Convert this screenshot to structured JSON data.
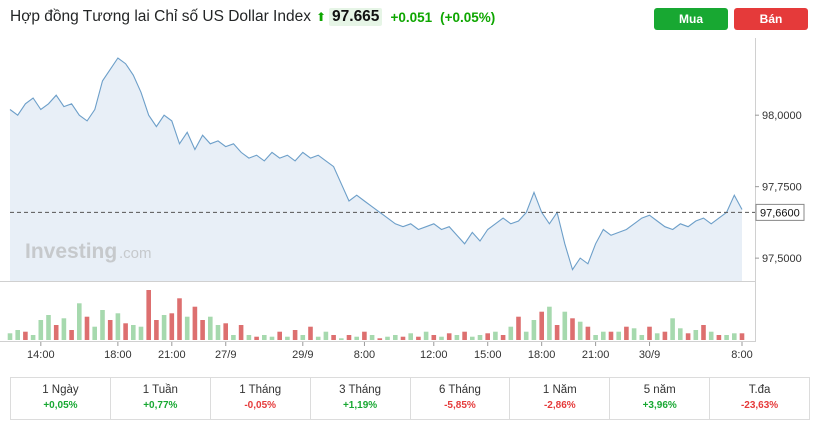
{
  "header": {
    "title": "Hợp đồng Tương lai Chỉ số US Dollar Index",
    "arrow": "⬆",
    "price": "97.665",
    "change": "+0.051",
    "change_pct": "(+0.05%)"
  },
  "buttons": {
    "buy": "Mua",
    "sell": "Bán"
  },
  "watermark": {
    "brand": "Investing",
    "suffix": ".com"
  },
  "periods": [
    {
      "label": "1 Ngày",
      "value": "+0,05%",
      "dir": "pos"
    },
    {
      "label": "1 Tuần",
      "value": "+0,77%",
      "dir": "pos"
    },
    {
      "label": "1 Tháng",
      "value": "-0,05%",
      "dir": "neg"
    },
    {
      "label": "3 Tháng",
      "value": "+1,19%",
      "dir": "pos"
    },
    {
      "label": "6 Tháng",
      "value": "-5,85%",
      "dir": "neg"
    },
    {
      "label": "1 Năm",
      "value": "-2,86%",
      "dir": "neg"
    },
    {
      "label": "5 năm",
      "value": "+3,96%",
      "dir": "pos"
    },
    {
      "label": "T.đa",
      "value": "-23,63%",
      "dir": "neg"
    }
  ],
  "colors": {
    "line": "#6d9fc9",
    "area": "#e8eff7",
    "up": "#a6d9ae",
    "down": "#dd6f6f",
    "dash": "#555555",
    "grid": "#d0d0d0"
  },
  "chart_data": {
    "type": "area",
    "ylim": [
      97.42,
      98.27
    ],
    "yticks": [
      "98,0000",
      "97,7500",
      "97,5000"
    ],
    "ytick_values": [
      98.0,
      97.75,
      97.5
    ],
    "current_label": "97,6600",
    "current_value": 97.66,
    "xticks": [
      "14:00",
      "18:00",
      "21:00",
      "27/9",
      "29/9",
      "8:00",
      "12:00",
      "15:00",
      "18:00",
      "21:00",
      "30/9",
      "8:00"
    ],
    "xtick_index": [
      4,
      14,
      21,
      28,
      38,
      46,
      55,
      62,
      69,
      76,
      83,
      95
    ],
    "n": 96,
    "values": [
      98.02,
      98.0,
      98.04,
      98.06,
      98.02,
      98.04,
      98.07,
      98.03,
      98.04,
      98.0,
      97.98,
      98.02,
      98.12,
      98.16,
      98.2,
      98.18,
      98.14,
      98.08,
      98.0,
      97.96,
      98.0,
      97.98,
      97.9,
      97.94,
      97.88,
      97.93,
      97.9,
      97.91,
      97.89,
      97.9,
      97.87,
      97.85,
      97.86,
      97.84,
      97.87,
      97.85,
      97.86,
      97.84,
      97.87,
      97.85,
      97.86,
      97.84,
      97.82,
      97.76,
      97.7,
      97.72,
      97.7,
      97.68,
      97.66,
      97.64,
      97.62,
      97.61,
      97.62,
      97.6,
      97.61,
      97.62,
      97.6,
      97.61,
      97.58,
      97.55,
      97.59,
      97.56,
      97.6,
      97.62,
      97.64,
      97.62,
      97.63,
      97.66,
      97.73,
      97.66,
      97.62,
      97.66,
      97.55,
      97.46,
      97.5,
      97.48,
      97.55,
      97.6,
      97.58,
      97.59,
      97.6,
      97.62,
      97.64,
      97.65,
      97.63,
      97.61,
      97.6,
      97.62,
      97.61,
      97.63,
      97.64,
      97.62,
      97.64,
      97.66,
      97.72,
      97.67
    ],
    "volume": [
      4,
      6,
      5,
      3,
      12,
      15,
      9,
      13,
      6,
      22,
      14,
      8,
      18,
      12,
      16,
      10,
      9,
      8,
      30,
      12,
      15,
      16,
      25,
      14,
      20,
      12,
      14,
      9,
      10,
      3,
      9,
      3,
      2,
      3,
      2,
      5,
      2,
      6,
      3,
      8,
      2,
      5,
      3,
      1,
      3,
      2,
      5,
      3,
      1,
      2,
      3,
      2,
      4,
      2,
      5,
      3,
      2,
      4,
      3,
      5,
      2,
      3,
      4,
      5,
      3,
      8,
      14,
      5,
      12,
      17,
      20,
      9,
      17,
      13,
      11,
      8,
      3,
      5,
      5,
      5,
      8,
      7,
      3,
      8,
      4,
      5,
      13,
      7,
      4,
      6,
      9,
      5,
      3,
      3,
      4,
      4
    ],
    "volume_dir": [
      "u",
      "u",
      "d",
      "u",
      "u",
      "u",
      "d",
      "u",
      "d",
      "u",
      "d",
      "u",
      "u",
      "d",
      "u",
      "d",
      "u",
      "u",
      "d",
      "d",
      "u",
      "d",
      "d",
      "u",
      "d",
      "d",
      "u",
      "u",
      "d",
      "u",
      "d",
      "u",
      "d",
      "u",
      "u",
      "d",
      "u",
      "d",
      "u",
      "d",
      "u",
      "u",
      "d",
      "u",
      "d",
      "u",
      "d",
      "u",
      "d",
      "u",
      "u",
      "d",
      "u",
      "d",
      "u",
      "d",
      "u",
      "d",
      "u",
      "d",
      "u",
      "u",
      "d",
      "u",
      "d",
      "u",
      "d",
      "u",
      "u",
      "d",
      "u",
      "d",
      "u",
      "d",
      "u",
      "d",
      "u",
      "u",
      "d",
      "u",
      "d",
      "u",
      "u",
      "d",
      "u",
      "d",
      "u",
      "u",
      "d",
      "u",
      "d",
      "u",
      "d",
      "u",
      "u",
      "d"
    ]
  }
}
